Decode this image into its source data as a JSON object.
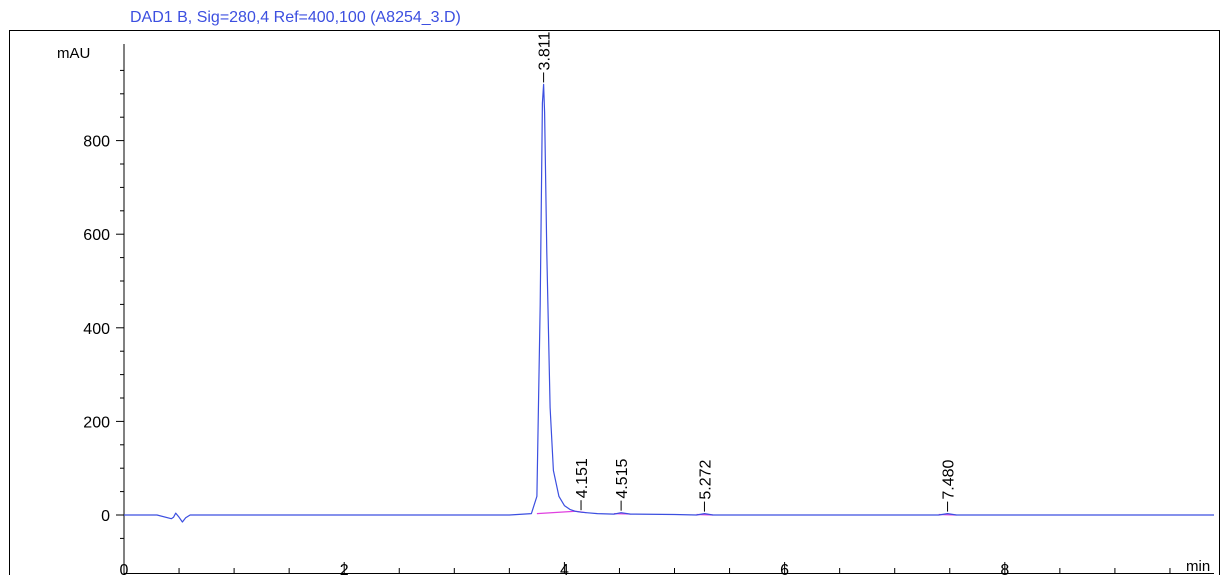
{
  "chart_data": {
    "type": "line",
    "title": "DAD1 B, Sig=280,4 Ref=400,100 (A8254_3.D)",
    "xlabel": "min",
    "ylabel": "mAU",
    "xlim": [
      0,
      9.9
    ],
    "ylim": [
      -60,
      1000
    ],
    "xticks": [
      0,
      2,
      4,
      6,
      8
    ],
    "yticks": [
      0,
      200,
      400,
      600,
      800
    ],
    "grid": false,
    "colors": {
      "signal": "#3c4fe0",
      "baseline": "#e040e0",
      "title": "#3c4fe0",
      "axis": "#000000"
    },
    "series": [
      {
        "x": [
          0.0,
          0.3,
          0.43,
          0.45,
          0.47,
          0.5,
          0.53,
          0.56,
          0.6,
          0.65,
          1.0,
          2.0,
          3.0,
          3.5,
          3.7,
          3.75,
          3.78,
          3.8,
          3.811,
          3.82,
          3.84,
          3.87,
          3.9,
          3.95,
          4.0,
          4.05,
          4.1,
          4.151,
          4.2,
          4.3,
          4.45,
          4.515,
          4.6,
          5.0,
          5.2,
          5.272,
          5.35,
          6.0,
          7.0,
          7.4,
          7.48,
          7.56,
          8.0,
          8.5,
          9.3,
          9.9
        ],
        "y": [
          0,
          0,
          -8,
          -5,
          4,
          -5,
          -15,
          -6,
          0,
          0,
          0,
          0,
          0,
          0,
          3,
          40,
          450,
          880,
          920,
          860,
          560,
          230,
          95,
          40,
          20,
          12,
          8,
          6,
          5,
          3,
          2,
          5,
          2,
          1,
          0,
          3,
          0,
          0,
          0,
          0,
          3,
          0,
          0,
          0,
          0,
          0
        ]
      }
    ],
    "peaks": [
      {
        "label": "3.811",
        "x": 3.811,
        "y": 920
      },
      {
        "label": "4.151",
        "x": 4.151,
        "y": 6
      },
      {
        "label": "4.515",
        "x": 4.515,
        "y": 5
      },
      {
        "label": "5.272",
        "x": 5.272,
        "y": 3
      },
      {
        "label": "7.480",
        "x": 7.48,
        "y": 3
      }
    ],
    "integration_baselines": [
      {
        "x": [
          3.75,
          4.1
        ],
        "y": [
          3,
          8
        ]
      },
      {
        "x": [
          4.1,
          4.2
        ],
        "y": [
          8,
          5
        ]
      },
      {
        "x": [
          4.45,
          4.6
        ],
        "y": [
          3,
          2
        ]
      },
      {
        "x": [
          5.2,
          5.35
        ],
        "y": [
          1,
          0
        ]
      },
      {
        "x": [
          7.4,
          7.56
        ],
        "y": [
          1,
          0
        ]
      }
    ]
  }
}
